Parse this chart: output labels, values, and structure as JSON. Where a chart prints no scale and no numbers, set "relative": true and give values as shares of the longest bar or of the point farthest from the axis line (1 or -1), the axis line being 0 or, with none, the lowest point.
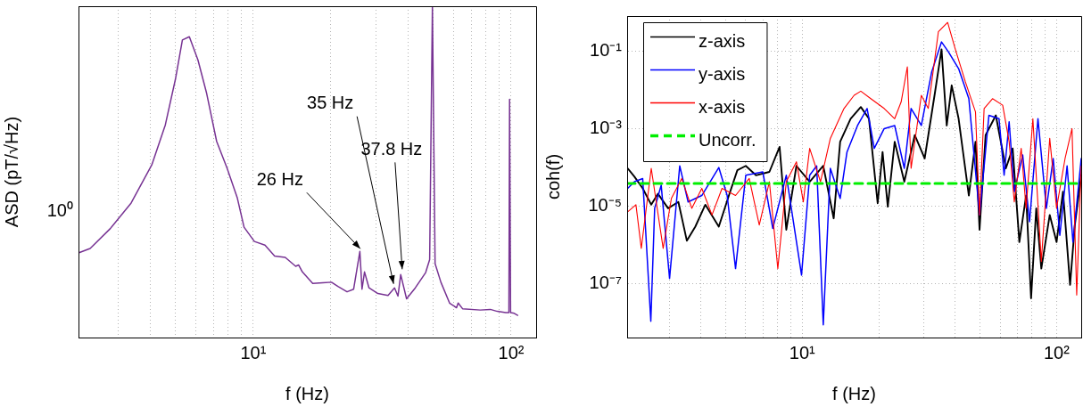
{
  "chart_data": [
    {
      "type": "line",
      "xlabel": "f (Hz)",
      "ylabel": "ASD (pT/√Hz)",
      "log": "x",
      "grid": "x",
      "relative": true,
      "xlim": [
        2.1,
        125
      ],
      "xticks": [
        {
          "value": 3,
          "label": null
        },
        {
          "value": 4,
          "label": null
        },
        {
          "value": 5,
          "label": null
        },
        {
          "value": 6,
          "label": null
        },
        {
          "value": 7,
          "label": null
        },
        {
          "value": 8,
          "label": null
        },
        {
          "value": 9,
          "label": null
        },
        {
          "value": 10,
          "label": "10¹"
        },
        {
          "value": 20,
          "label": null
        },
        {
          "value": 30,
          "label": null
        },
        {
          "value": 40,
          "label": null
        },
        {
          "value": 50,
          "label": null
        },
        {
          "value": 60,
          "label": null
        },
        {
          "value": 70,
          "label": null
        },
        {
          "value": 80,
          "label": null
        },
        {
          "value": 90,
          "label": null
        },
        {
          "value": 100,
          "label": "10²"
        }
      ],
      "annotations": [
        {
          "text": "26 Hz",
          "x": 26,
          "y": 0.26
        },
        {
          "text": "35 Hz",
          "x": 35,
          "y": 0.154
        },
        {
          "text": "37.8 Hz",
          "x": 37.8,
          "y": 0.198
        },
        "10⁰"
      ],
      "series": [
        {
          "color": "#773393",
          "x": [
            2.11,
            2.33,
            2.79,
            3.36,
            4.04,
            4.56,
            5.0,
            5.31,
            5.65,
            6.1,
            6.58,
            7.21,
            7.9,
            8.66,
            9.21,
            10.1,
            11.1,
            12.1,
            13.3,
            14.6,
            15.0,
            15.5,
            17.0,
            18.6,
            20.1,
            21.3,
            23.1,
            24.5,
            25.9,
            26.4,
            27.0,
            28.1,
            30.4,
            33.3,
            35.3,
            36.4,
            37.3,
            39.3,
            42.5,
            46.6,
            48.3,
            49.5,
            50.7,
            53.4,
            57.7,
            61.4,
            62.3,
            64.8,
            75.9,
            83.0,
            88.3,
            95.3,
            98.0,
            98.6,
            99.5,
            102.8,
            106
          ],
          "values": [
            0.256,
            0.269,
            0.329,
            0.406,
            0.521,
            0.642,
            0.783,
            0.898,
            0.908,
            0.838,
            0.74,
            0.592,
            0.513,
            0.423,
            0.333,
            0.29,
            0.279,
            0.246,
            0.242,
            0.215,
            0.219,
            0.198,
            0.163,
            0.165,
            0.167,
            0.154,
            0.138,
            0.146,
            0.26,
            0.146,
            0.198,
            0.15,
            0.133,
            0.127,
            0.15,
            0.125,
            0.19,
            0.117,
            0.15,
            0.196,
            0.235,
            1,
            0.223,
            0.167,
            0.104,
            0.09,
            0.104,
            0.087,
            0.083,
            0.085,
            0.079,
            0.075,
            0.075,
            0.719,
            0.075,
            0.073,
            0.067
          ]
        }
      ]
    },
    {
      "type": "line",
      "xlabel": "f (Hz)",
      "ylabel": "coh(f)",
      "log": "xy",
      "grid": true,
      "legend": "top left",
      "xlim": [
        2.05,
        125
      ],
      "xticks": [
        {
          "value": 3,
          "label": null
        },
        {
          "value": 4,
          "label": null
        },
        {
          "value": 5,
          "label": null
        },
        {
          "value": 6,
          "label": null
        },
        {
          "value": 7,
          "label": null
        },
        {
          "value": 8,
          "label": null
        },
        {
          "value": 9,
          "label": null
        },
        {
          "value": 10,
          "label": "10¹"
        },
        {
          "value": 20,
          "label": null
        },
        {
          "value": 30,
          "label": null
        },
        {
          "value": 40,
          "label": null
        },
        {
          "value": 50,
          "label": null
        },
        {
          "value": 60,
          "label": null
        },
        {
          "value": 70,
          "label": null
        },
        {
          "value": 80,
          "label": null
        },
        {
          "value": 90,
          "label": null
        },
        {
          "value": 100,
          "label": "10²"
        }
      ],
      "ylim": [
        4.2e-09,
        0.79
      ],
      "yticks": [
        {
          "value": 1e-07,
          "label": "10⁻⁷"
        },
        {
          "value": 1e-05,
          "label": "10⁻⁵"
        },
        {
          "value": 0.001,
          "label": "10⁻³"
        },
        {
          "value": 0.1,
          "label": "10⁻¹"
        }
      ],
      "series": [
        {
          "name": "z-axis",
          "color": "#000000",
          "x": [
            2.06,
            2.19,
            2.36,
            2.55,
            2.71,
            2.97,
            3.26,
            3.52,
            3.8,
            4.16,
            4.7,
            5.15,
            5.56,
            6.0,
            6.58,
            7.43,
            8.15,
            8.66,
            9.49,
            10.7,
            12.1,
            13.3,
            14.1,
            15.5,
            17.0,
            18.3,
            19.8,
            20.7,
            21.7,
            23.1,
            25.2,
            27.7,
            30.3,
            33.3,
            35.3,
            37.0,
            38.7,
            41.2,
            45.2,
            48.0,
            49.8,
            52.6,
            57.7,
            63.2,
            67.2,
            71.4,
            75.9,
            79.4,
            83.2,
            87.1,
            94.0,
            100,
            106,
            113,
            118,
            125
          ],
          "values": [
            9.5e-05,
            5.8e-05,
            2.9e-05,
            1.1e-05,
            2.1e-05,
            8.9e-06,
            1.3e-05,
            1.3e-06,
            3e-06,
            1.1e-05,
            3e-06,
            1.9e-05,
            8.5e-05,
            0.00011,
            6.3e-05,
            7.7e-05,
            0.00034,
            2.5e-06,
            0.00011,
            4.3e-05,
            0.00011,
            4.9e-06,
            0.00046,
            0.0018,
            0.0036,
            0.0018,
            1.2e-05,
            0.00025,
            9.8e-06,
            0.00046,
            4.3e-05,
            0.00068,
            0.00017,
            0.0089,
            0.11,
            0.0012,
            0.013,
            0.0018,
            1.9e-05,
            0.00046,
            2.5e-06,
            0.00068,
            0.0022,
            9.5e-05,
            0.00031,
            1.2e-06,
            1.9e-05,
            4.3e-08,
            8.9e-06,
            2.5e-07,
            6e-06,
            1.2e-06,
            2.4e-05,
            9.5e-08,
            3.3e-06,
            6.3e-05
          ]
        },
        {
          "name": "y-axis",
          "color": "#0000ff",
          "x": [
            2.06,
            2.19,
            2.36,
            2.54,
            2.63,
            2.79,
            3.01,
            3.3,
            3.56,
            4.03,
            4.7,
            5.07,
            5.47,
            6.0,
            7.0,
            7.66,
            8.66,
            9.94,
            10.7,
            11.4,
            12.1,
            12.9,
            14.1,
            15.0,
            16.5,
            18.0,
            19.2,
            21.0,
            23.1,
            25.2,
            26.8,
            29.4,
            32.3,
            35.3,
            37.6,
            41.2,
            45.2,
            49.8,
            54.2,
            59.4,
            62.2,
            65.1,
            68.2,
            73.6,
            78.3,
            84.5,
            91.2,
            97.0,
            103,
            110,
            116,
            125
          ],
          "values": [
            2.9e-05,
            4.3e-05,
            5.2e-05,
            1.1e-08,
            8.9e-06,
            3.5e-05,
            1.4e-07,
            0.00011,
            1.3e-05,
            1.9e-05,
            0.0001,
            1.9e-05,
            2.5e-07,
            6.3e-05,
            7.7e-05,
            2.7e-06,
            6.3e-05,
            1.7e-07,
            6.3e-05,
            0.00011,
            8.9e-09,
            9.5e-05,
            1.6e-05,
            0.00025,
            0.0012,
            0.0033,
            0.00031,
            0.001,
            0.0012,
            9.5e-05,
            0.0033,
            0.0012,
            0.029,
            0.17,
            0.094,
            0.035,
            0.0059,
            6e-06,
            0.0022,
            0.0018,
            6.3e-05,
            0.0015,
            2.4e-05,
            0.00021,
            4e-06,
            0.0018,
            8.9e-06,
            0.00017,
            1.8e-06,
            0.00011,
            1.2e-06,
            0.00017
          ]
        },
        {
          "name": "x-axis",
          "color": "#ff0000",
          "x": [
            2.06,
            2.22,
            2.33,
            2.55,
            2.84,
            3.06,
            3.36,
            3.68,
            4.03,
            4.42,
            4.84,
            5.47,
            6.19,
            6.78,
            7.43,
            8.02,
            8.66,
            9.49,
            10.1,
            10.7,
            11.8,
            12.9,
            14.6,
            16.0,
            17.0,
            18.6,
            21.0,
            23.1,
            24.5,
            25.9,
            26.8,
            29.4,
            31.3,
            34.3,
            37.3,
            40.0,
            43.8,
            48.0,
            49.8,
            51.9,
            56.0,
            61.4,
            65.1,
            68.2,
            72.6,
            75.9,
            80.7,
            87.1,
            94.0,
            100,
            108,
            115,
            120,
            125
          ],
          "values": [
            7.2e-06,
            1.1e-05,
            8.3e-07,
            9.5e-05,
            8.3e-07,
            1.6e-05,
            5.2e-05,
            8.9e-06,
            2.9e-05,
            6e-06,
            2.9e-05,
            1.9e-05,
            5.2e-05,
            3.3e-06,
            4.3e-05,
            2.5e-07,
            4.3e-05,
            0.00014,
            1.3e-05,
            0.00031,
            4.3e-05,
            0.00056,
            0.0033,
            0.0072,
            0.0092,
            0.0059,
            0.0033,
            0.0018,
            0.0049,
            0.039,
            9.5e-05,
            0.0072,
            0.0033,
            0.31,
            0.54,
            0.11,
            0.016,
            0.0027,
            6e-06,
            0.0033,
            0.0059,
            0.004,
            0.00046,
            1.3e-05,
            0.00031,
            8.9e-06,
            0.0018,
            3.8e-07,
            0.00056,
            8.9e-06,
            0.00017,
            0.001,
            5.2e-08,
            0.00011
          ]
        },
        {
          "name": "Uncorr.",
          "color": "#00ee00",
          "line_style": "dashed",
          "x": [
            2.05,
            125
          ],
          "values": [
            3.9e-05,
            3.9e-05
          ]
        }
      ]
    }
  ]
}
